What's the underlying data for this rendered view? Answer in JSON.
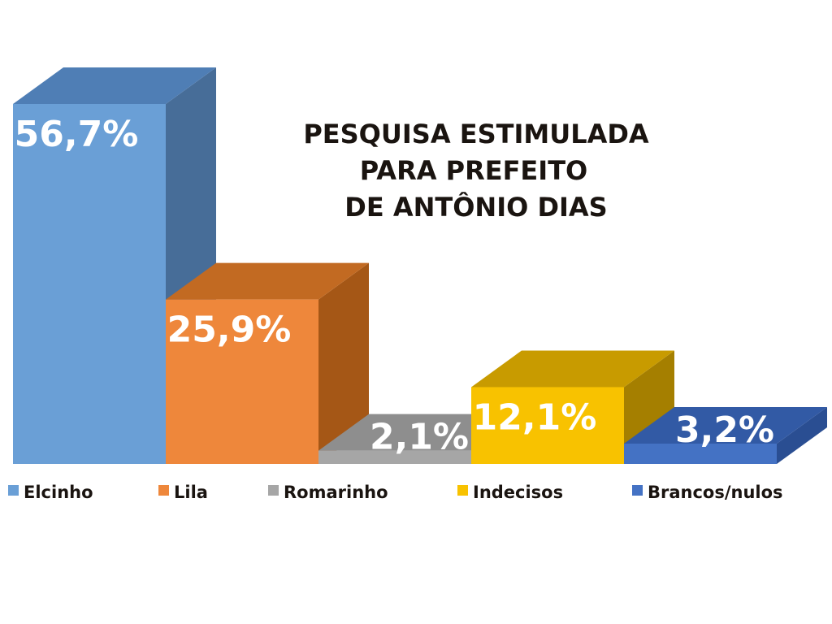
{
  "chart_data": {
    "type": "bar",
    "title_lines": [
      "PESQUISA ESTIMULADA",
      "PARA PREFEITO",
      "DE ANTÔNIO DIAS"
    ],
    "categories": [
      "Elcinho",
      "Lila",
      "Romarinho",
      "Indecisos",
      "Brancos/nulos"
    ],
    "values": [
      56.7,
      25.9,
      2.1,
      12.1,
      3.2
    ],
    "value_labels": [
      "56,7%",
      "25,9%",
      "2,1%",
      "12,1%",
      "3,2%"
    ],
    "colors": [
      "#6a9fd6",
      "#ee873b",
      "#a6a6a6",
      "#f8c200",
      "#4472c4"
    ],
    "side_colors": [
      "#476d98",
      "#a55716",
      "#7d7d7d",
      "#a57f00",
      "#2a4e92"
    ],
    "top_colors": [
      "#4f7eb5",
      "#c26a22",
      "#8e8e8e",
      "#c89b00",
      "#325aa5"
    ],
    "ylim": [
      0,
      60
    ],
    "legend_position": "bottom",
    "style": "3d"
  }
}
